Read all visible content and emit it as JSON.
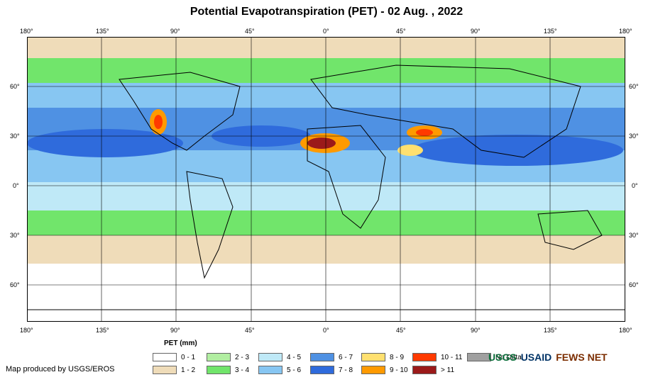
{
  "title": "Potential Evapotranspiration (PET) - 02 Aug. , 2022",
  "axes": {
    "top": [
      "180°",
      "135°",
      "90°",
      "45°",
      "0°",
      "45°",
      "90°",
      "135°",
      "180°"
    ],
    "bottom": [
      "180°",
      "135°",
      "90°",
      "45°",
      "0°",
      "45°",
      "90°",
      "135°",
      "180°"
    ],
    "left": [
      "60°",
      "30°",
      "0°",
      "30°",
      "60°"
    ],
    "right": [
      "60°",
      "30°",
      "0°",
      "30°",
      "60°"
    ]
  },
  "legend": {
    "title": "PET (mm)",
    "items": [
      {
        "label": "0 - 1",
        "color": "#ffffff"
      },
      {
        "label": "1 - 2",
        "color": "#efdcb9"
      },
      {
        "label": "2 - 3",
        "color": "#b1eea1"
      },
      {
        "label": "3 - 4",
        "color": "#71e56b"
      },
      {
        "label": "4 - 5",
        "color": "#bfe9f7"
      },
      {
        "label": "5 - 6",
        "color": "#87c6f2"
      },
      {
        "label": "6 - 7",
        "color": "#4f91e3"
      },
      {
        "label": "7 - 8",
        "color": "#2f6bdc"
      },
      {
        "label": "8 - 9",
        "color": "#ffe070"
      },
      {
        "label": "9 - 10",
        "color": "#ff9a00"
      },
      {
        "label": "10 - 11",
        "color": "#ff3a00"
      },
      {
        "label": "> 11",
        "color": "#9b1a1a"
      },
      {
        "label": "No Data",
        "color": "#a0a0a0"
      }
    ]
  },
  "credit": "Map produced by USGS/EROS",
  "logos": [
    "USGS",
    "USAID",
    "FEWS NET"
  ]
}
